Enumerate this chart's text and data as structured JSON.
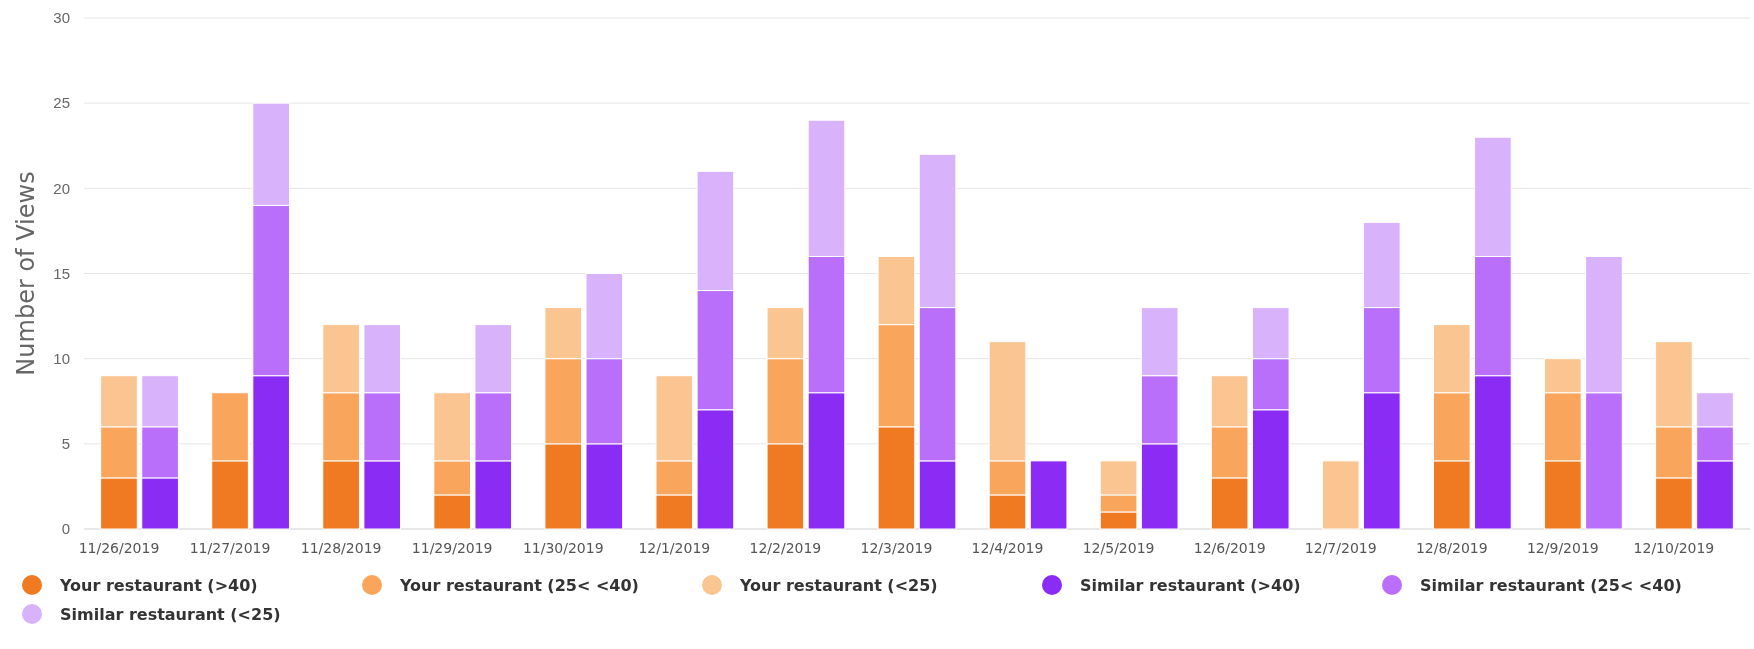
{
  "chart_data": {
    "type": "bar",
    "stacked": true,
    "ylabel": "Number of Views",
    "categories": [
      "11/26/2019",
      null,
      "11/27/2019",
      null,
      "11/28/2019",
      null,
      "11/29/2019",
      null,
      "11/30/2019",
      null,
      "12/1/2019",
      null,
      "12/2/2019",
      null,
      "12/3/2019",
      null,
      "12/4/2019",
      null,
      "12/5/2019",
      null,
      "12/6/2019",
      null,
      "12/7/2019",
      null,
      "12/8/2019",
      null,
      "12/9/2019",
      null,
      "12/10/2019",
      null
    ],
    "series": [
      {
        "name": "Your restaurant (>40)",
        "color": "#f07a22",
        "values": [
          3,
          null,
          4,
          null,
          4,
          null,
          2,
          null,
          5,
          null,
          2,
          null,
          5,
          null,
          6,
          null,
          2,
          null,
          1,
          null,
          3,
          null,
          0,
          null,
          4,
          null,
          4,
          null,
          3,
          null
        ]
      },
      {
        "name": "Your restaurant (25< <40)",
        "color": "#f9a55b",
        "values": [
          3,
          null,
          4,
          null,
          4,
          null,
          2,
          null,
          5,
          null,
          2,
          null,
          5,
          null,
          6,
          null,
          2,
          null,
          1,
          null,
          3,
          null,
          0,
          null,
          4,
          null,
          4,
          null,
          3,
          null
        ]
      },
      {
        "name": "Your restaurant (<25)",
        "color": "#fac590",
        "values": [
          3,
          null,
          0,
          null,
          4,
          null,
          4,
          null,
          3,
          null,
          5,
          null,
          3,
          null,
          4,
          null,
          7,
          null,
          2,
          null,
          3,
          null,
          4,
          null,
          4,
          null,
          2,
          null,
          5,
          null
        ]
      },
      {
        "name": "Similar restaurant (>40)",
        "color": "#8b2cf5",
        "values": [
          null,
          3,
          null,
          9,
          null,
          4,
          null,
          4,
          null,
          5,
          null,
          7,
          null,
          8,
          null,
          4,
          null,
          4,
          null,
          5,
          null,
          7,
          null,
          8,
          null,
          9,
          null,
          0,
          null,
          4
        ]
      },
      {
        "name": "Similar restaurant (25< <40)",
        "color": "#b96ff9",
        "values": [
          null,
          3,
          null,
          10,
          null,
          4,
          null,
          4,
          null,
          5,
          null,
          7,
          null,
          8,
          null,
          9,
          null,
          0,
          null,
          4,
          null,
          3,
          null,
          5,
          null,
          7,
          null,
          8,
          null,
          2
        ]
      },
      {
        "name": "Similar restaurant (<25)",
        "color": "#d9b2fc",
        "values": [
          null,
          3,
          null,
          6,
          null,
          4,
          null,
          4,
          null,
          5,
          null,
          7,
          null,
          8,
          null,
          9,
          null,
          0,
          null,
          4,
          null,
          3,
          null,
          5,
          null,
          7,
          null,
          8,
          null,
          2
        ]
      }
    ],
    "ylim": [
      0,
      30
    ],
    "yticks": [
      0,
      5,
      10,
      15,
      20,
      25,
      30
    ],
    "grid": "y",
    "legend": "bottom"
  }
}
